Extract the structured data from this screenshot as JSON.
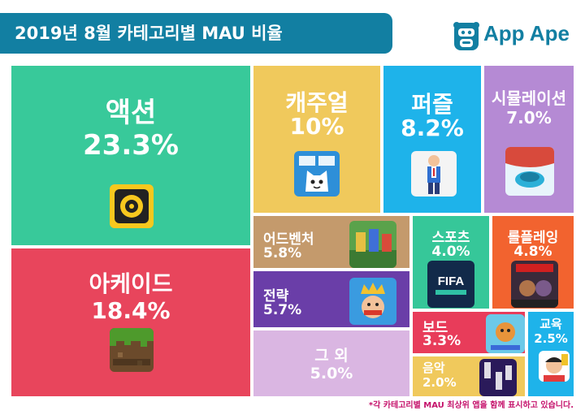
{
  "header": {
    "title": "2019년 8월 카테고리별 MAU 비율"
  },
  "logo": {
    "text": "App Ape",
    "icon": "ape-face-icon"
  },
  "chart_data": {
    "type": "treemap",
    "categories": [
      {
        "name": "액션",
        "value": 23.3,
        "label": "23.3%",
        "color": "#38c99a",
        "icon": "brawl-stars-icon"
      },
      {
        "name": "아케이드",
        "value": 18.4,
        "label": "18.4%",
        "color": "#e8455c",
        "icon": "minecraft-icon"
      },
      {
        "name": "캐주얼",
        "value": 10,
        "label": "10%",
        "color": "#f0c95c",
        "icon": "cat-game-icon"
      },
      {
        "name": "퍼즐",
        "value": 8.2,
        "label": "8.2%",
        "color": "#1eb3ea",
        "icon": "puzzle-man-icon"
      },
      {
        "name": "시뮬레이션",
        "value": 7.0,
        "label": "7.0%",
        "color": "#b58ad4",
        "icon": "curling-icon"
      },
      {
        "name": "어드벤처",
        "value": 5.8,
        "label": "5.8%",
        "color": "#c49a6c",
        "icon": "roblox-icon"
      },
      {
        "name": "스포츠",
        "value": 4.0,
        "label": "4.0%",
        "color": "#36c799",
        "icon": "fifa-icon"
      },
      {
        "name": "롤플레잉",
        "value": 4.8,
        "label": "4.8%",
        "color": "#f2632f",
        "icon": "marvel-icon"
      },
      {
        "name": "전략",
        "value": 5.7,
        "label": "5.7%",
        "color": "#6a3ea8",
        "icon": "clash-royale-icon"
      },
      {
        "name": "보드",
        "value": 3.3,
        "label": "3.3%",
        "color": "#e83c5a",
        "icon": "board-game-icon"
      },
      {
        "name": "교육",
        "value": 2.5,
        "label": "2.5%",
        "color": "#1eb3ea",
        "icon": "education-icon"
      },
      {
        "name": "그 외",
        "value": 5.0,
        "label": "5.0%",
        "color": "#dab6e2",
        "icon": ""
      },
      {
        "name": "음악",
        "value": 2.0,
        "label": "2.0%",
        "color": "#f0c95c",
        "icon": "music-tiles-icon"
      }
    ]
  },
  "footnote": "*각 카테고리별 MAU 최상위 앱을 함께 표시하고 있습니다."
}
